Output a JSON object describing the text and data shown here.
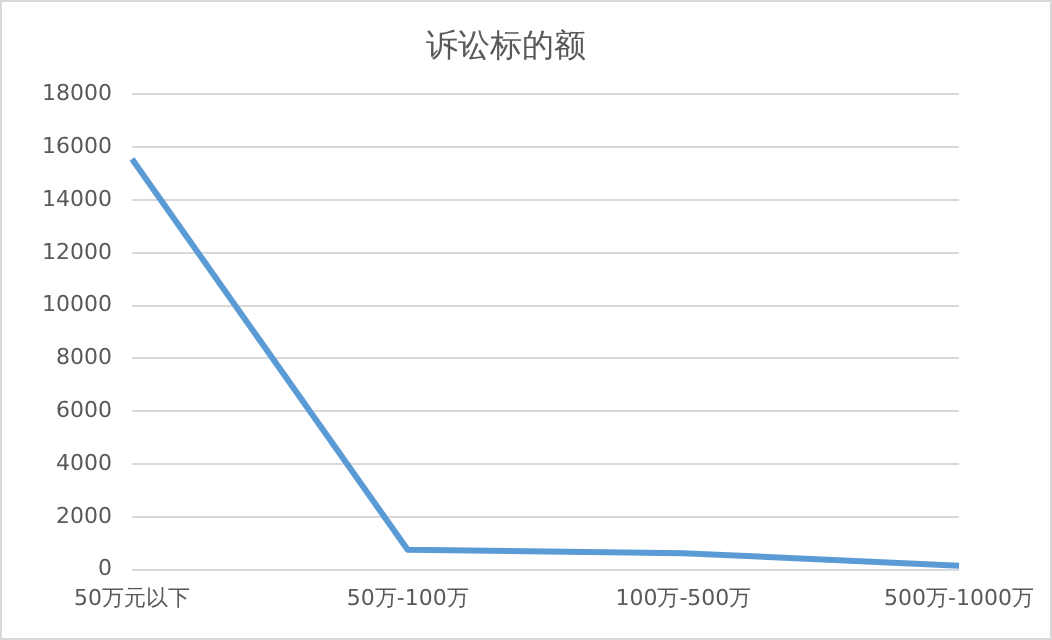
{
  "chart_data": {
    "type": "line",
    "title": "诉讼标的额",
    "categories": [
      "50万元以下",
      "50万-100万",
      "100万-500万",
      "500万-1000万"
    ],
    "series": [
      {
        "color": "#5b9bd5",
        "values": [
          15550,
          750,
          620,
          150
        ]
      }
    ],
    "ylim": [
      0,
      18000
    ],
    "yticks": [
      0,
      2000,
      4000,
      6000,
      8000,
      10000,
      12000,
      14000,
      16000,
      18000
    ],
    "grid": "y",
    "legend": false,
    "marker": "none"
  }
}
